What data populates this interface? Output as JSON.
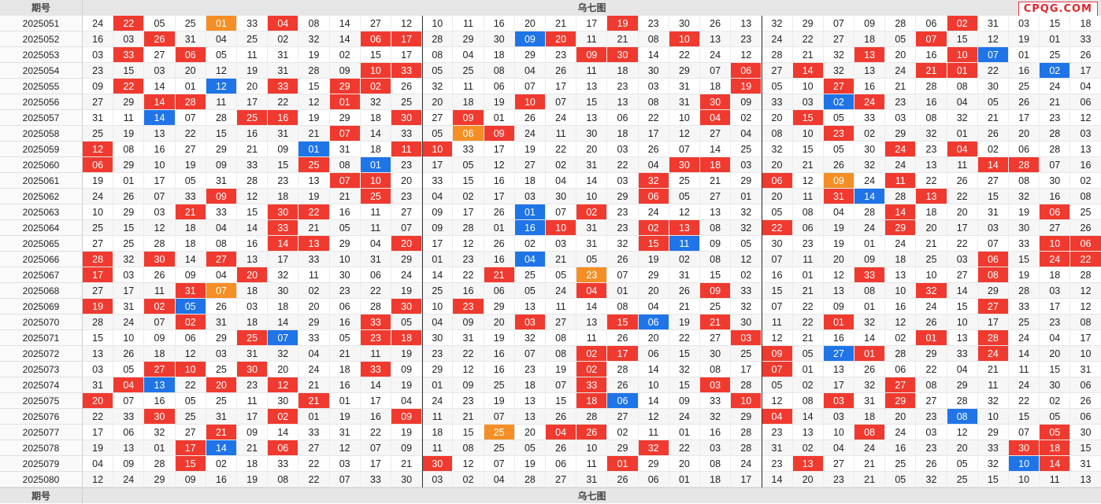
{
  "header": {
    "period_label": "期号",
    "chart_label": "乌七图",
    "logo": "CPQG.COM"
  },
  "footer": {
    "period_label": "期号",
    "chart_label": "乌七图"
  },
  "colors": {
    "red": "#f03a2f",
    "blue": "#1f74e8",
    "orange": "#f58f25"
  },
  "highlight_legend": "r = red, b = blue, o = orange, - = none",
  "rows": [
    {
      "period": "2025051",
      "nums": [
        "24",
        "22",
        "05",
        "25",
        "01",
        "33",
        "04",
        "08",
        "14",
        "27",
        "12",
        "10",
        "11",
        "16",
        "20",
        "21",
        "17",
        "19",
        "23",
        "30",
        "26",
        "13",
        "32",
        "29",
        "07",
        "09",
        "28",
        "06",
        "02",
        "31",
        "03",
        "15",
        "18"
      ],
      "hl": "-r--o-r----------r----------r-----"
    },
    {
      "period": "2025052",
      "nums": [
        "16",
        "03",
        "26",
        "31",
        "04",
        "25",
        "02",
        "32",
        "14",
        "06",
        "17",
        "28",
        "29",
        "30",
        "09",
        "20",
        "11",
        "21",
        "08",
        "10",
        "13",
        "23",
        "24",
        "22",
        "27",
        "18",
        "05",
        "07",
        "15",
        "12",
        "19",
        "01",
        "33"
      ],
      "hl": "--r------rr---br---r-------r------"
    },
    {
      "period": "2025053",
      "nums": [
        "03",
        "33",
        "27",
        "06",
        "05",
        "11",
        "31",
        "19",
        "02",
        "15",
        "17",
        "08",
        "04",
        "18",
        "29",
        "23",
        "09",
        "30",
        "14",
        "22",
        "24",
        "12",
        "28",
        "21",
        "32",
        "13",
        "20",
        "16",
        "10",
        "07",
        "01",
        "25",
        "26"
      ],
      "hl": "-r-r------------rr-------r--rb----"
    },
    {
      "period": "2025054",
      "nums": [
        "23",
        "15",
        "03",
        "20",
        "12",
        "19",
        "31",
        "28",
        "09",
        "10",
        "33",
        "05",
        "25",
        "08",
        "04",
        "26",
        "11",
        "18",
        "30",
        "29",
        "07",
        "06",
        "27",
        "14",
        "32",
        "13",
        "24",
        "21",
        "01",
        "22",
        "16",
        "02",
        "17"
      ],
      "hl": "---------rr----------r-r---rr--b--"
    },
    {
      "period": "2025055",
      "nums": [
        "09",
        "22",
        "14",
        "01",
        "12",
        "20",
        "33",
        "15",
        "29",
        "02",
        "26",
        "32",
        "11",
        "06",
        "07",
        "17",
        "13",
        "23",
        "03",
        "31",
        "18",
        "19",
        "05",
        "10",
        "27",
        "16",
        "21",
        "28",
        "08",
        "30",
        "25",
        "24",
        "04"
      ],
      "hl": "-r--b-r-rr-----------r--r--------"
    },
    {
      "period": "2025056",
      "nums": [
        "27",
        "29",
        "14",
        "28",
        "11",
        "17",
        "22",
        "12",
        "01",
        "32",
        "25",
        "20",
        "18",
        "19",
        "10",
        "07",
        "15",
        "13",
        "08",
        "31",
        "30",
        "09",
        "33",
        "03",
        "02",
        "24",
        "23",
        "16",
        "04",
        "05",
        "26",
        "21",
        "06"
      ],
      "hl": "--rr----r-----r-----r---br--------"
    },
    {
      "period": "2025057",
      "nums": [
        "31",
        "11",
        "14",
        "07",
        "28",
        "25",
        "16",
        "19",
        "29",
        "18",
        "30",
        "27",
        "09",
        "01",
        "26",
        "24",
        "13",
        "06",
        "22",
        "10",
        "04",
        "02",
        "20",
        "15",
        "05",
        "33",
        "03",
        "08",
        "32",
        "21",
        "17",
        "23",
        "12"
      ],
      "hl": "--b--rr---r-r-------r--r---------"
    },
    {
      "period": "2025058",
      "nums": [
        "25",
        "19",
        "13",
        "22",
        "15",
        "16",
        "31",
        "21",
        "07",
        "14",
        "33",
        "05",
        "06",
        "09",
        "24",
        "11",
        "30",
        "18",
        "17",
        "12",
        "27",
        "04",
        "08",
        "10",
        "23",
        "02",
        "29",
        "32",
        "01",
        "26",
        "20",
        "28",
        "03"
      ],
      "hl": "--------r---or----------r--------"
    },
    {
      "period": "2025059",
      "nums": [
        "12",
        "08",
        "16",
        "27",
        "29",
        "21",
        "09",
        "01",
        "31",
        "18",
        "11",
        "10",
        "33",
        "17",
        "19",
        "22",
        "20",
        "03",
        "26",
        "07",
        "14",
        "25",
        "32",
        "15",
        "05",
        "30",
        "24",
        "23",
        "04",
        "02",
        "06",
        "28",
        "13"
      ],
      "hl": "r------b--rr--------------r-r----r"
    },
    {
      "period": "2025060",
      "nums": [
        "06",
        "29",
        "10",
        "19",
        "09",
        "33",
        "15",
        "25",
        "08",
        "01",
        "23",
        "17",
        "05",
        "12",
        "27",
        "02",
        "31",
        "22",
        "04",
        "30",
        "18",
        "03",
        "20",
        "21",
        "26",
        "32",
        "24",
        "13",
        "11",
        "14",
        "28",
        "07",
        "16"
      ],
      "hl": "r------r-b---------rr--------rr---"
    },
    {
      "period": "2025061",
      "nums": [
        "19",
        "01",
        "17",
        "05",
        "31",
        "28",
        "23",
        "13",
        "07",
        "10",
        "20",
        "33",
        "15",
        "16",
        "18",
        "04",
        "14",
        "03",
        "32",
        "25",
        "21",
        "29",
        "06",
        "12",
        "09",
        "24",
        "11",
        "22",
        "26",
        "27",
        "08",
        "30",
        "02"
      ],
      "hl": "--------rr--------r---r-o-r-------"
    },
    {
      "period": "2025062",
      "nums": [
        "24",
        "26",
        "07",
        "33",
        "09",
        "12",
        "18",
        "19",
        "21",
        "25",
        "23",
        "04",
        "02",
        "17",
        "03",
        "30",
        "10",
        "29",
        "06",
        "05",
        "27",
        "01",
        "20",
        "11",
        "31",
        "14",
        "28",
        "13",
        "22",
        "15",
        "32",
        "16",
        "08"
      ],
      "hl": "----r----r--------r-----rb-r-----r"
    },
    {
      "period": "2025063",
      "nums": [
        "10",
        "29",
        "03",
        "21",
        "33",
        "15",
        "30",
        "22",
        "16",
        "11",
        "27",
        "09",
        "17",
        "26",
        "01",
        "07",
        "02",
        "23",
        "24",
        "12",
        "13",
        "32",
        "05",
        "08",
        "04",
        "28",
        "14",
        "18",
        "20",
        "31",
        "19",
        "06",
        "25"
      ],
      "hl": "---r--rr------b-r---------r----r--"
    },
    {
      "period": "2025064",
      "nums": [
        "25",
        "15",
        "12",
        "18",
        "04",
        "14",
        "33",
        "21",
        "05",
        "11",
        "07",
        "09",
        "28",
        "01",
        "16",
        "10",
        "31",
        "23",
        "02",
        "13",
        "08",
        "32",
        "22",
        "06",
        "19",
        "24",
        "29",
        "20",
        "17",
        "03",
        "30",
        "27",
        "26"
      ],
      "hl": "------r-------br--rr--r---r-------"
    },
    {
      "period": "2025065",
      "nums": [
        "27",
        "25",
        "28",
        "18",
        "08",
        "16",
        "14",
        "13",
        "29",
        "04",
        "20",
        "17",
        "12",
        "26",
        "02",
        "03",
        "31",
        "32",
        "15",
        "11",
        "09",
        "05",
        "30",
        "23",
        "19",
        "01",
        "24",
        "21",
        "22",
        "07",
        "33",
        "10",
        "06"
      ],
      "hl": "------rr--r-------rb-----------rr"
    },
    {
      "period": "2025066",
      "nums": [
        "28",
        "32",
        "30",
        "14",
        "27",
        "13",
        "17",
        "33",
        "10",
        "31",
        "29",
        "01",
        "23",
        "16",
        "04",
        "21",
        "05",
        "26",
        "19",
        "02",
        "08",
        "12",
        "07",
        "11",
        "20",
        "09",
        "18",
        "25",
        "03",
        "06",
        "15",
        "24",
        "22"
      ],
      "hl": "r-r-r---------b--------------r-rr"
    },
    {
      "period": "2025067",
      "nums": [
        "17",
        "03",
        "26",
        "09",
        "04",
        "20",
        "32",
        "11",
        "30",
        "06",
        "24",
        "14",
        "22",
        "21",
        "25",
        "05",
        "23",
        "07",
        "29",
        "31",
        "15",
        "02",
        "16",
        "01",
        "12",
        "33",
        "13",
        "10",
        "27",
        "08",
        "19",
        "18",
        "28"
      ],
      "hl": "r----r-------r--o--------r---r------"
    },
    {
      "period": "2025068",
      "nums": [
        "27",
        "17",
        "11",
        "31",
        "07",
        "18",
        "30",
        "02",
        "23",
        "22",
        "19",
        "25",
        "16",
        "06",
        "05",
        "24",
        "04",
        "01",
        "20",
        "26",
        "09",
        "33",
        "15",
        "21",
        "13",
        "08",
        "10",
        "32",
        "14",
        "29",
        "28",
        "03",
        "12"
      ],
      "hl": "---ro-----------r---r------r-------"
    },
    {
      "period": "2025069",
      "nums": [
        "19",
        "31",
        "02",
        "05",
        "26",
        "03",
        "18",
        "20",
        "06",
        "28",
        "30",
        "10",
        "23",
        "29",
        "13",
        "11",
        "14",
        "08",
        "04",
        "21",
        "25",
        "32",
        "07",
        "22",
        "09",
        "01",
        "16",
        "24",
        "15",
        "27",
        "33",
        "17",
        "12"
      ],
      "hl": "r-rb------r-r----------------r----"
    },
    {
      "period": "2025070",
      "nums": [
        "28",
        "24",
        "07",
        "02",
        "31",
        "18",
        "14",
        "29",
        "16",
        "33",
        "05",
        "04",
        "09",
        "20",
        "03",
        "27",
        "13",
        "15",
        "06",
        "19",
        "21",
        "30",
        "11",
        "22",
        "01",
        "32",
        "12",
        "26",
        "10",
        "17",
        "25",
        "23",
        "08"
      ],
      "hl": "---r-----r----r--rb-r---r---------"
    },
    {
      "period": "2025071",
      "nums": [
        "15",
        "10",
        "09",
        "06",
        "29",
        "25",
        "07",
        "33",
        "05",
        "23",
        "18",
        "30",
        "31",
        "19",
        "32",
        "08",
        "11",
        "26",
        "20",
        "22",
        "27",
        "03",
        "12",
        "21",
        "16",
        "14",
        "02",
        "01",
        "13",
        "28",
        "24",
        "04",
        "17"
      ],
      "hl": "-----rb--rr----------r-----r-r----"
    },
    {
      "period": "2025072",
      "nums": [
        "13",
        "26",
        "18",
        "12",
        "03",
        "31",
        "32",
        "04",
        "21",
        "11",
        "19",
        "23",
        "22",
        "16",
        "07",
        "08",
        "02",
        "17",
        "06",
        "15",
        "30",
        "25",
        "09",
        "05",
        "27",
        "01",
        "28",
        "29",
        "33",
        "24",
        "14",
        "20",
        "10"
      ],
      "hl": "----------------rr----r-br---r---r--"
    },
    {
      "period": "2025073",
      "nums": [
        "03",
        "05",
        "27",
        "10",
        "25",
        "30",
        "20",
        "24",
        "18",
        "33",
        "09",
        "29",
        "12",
        "16",
        "23",
        "19",
        "02",
        "28",
        "14",
        "32",
        "08",
        "17",
        "07",
        "01",
        "13",
        "26",
        "06",
        "22",
        "04",
        "21",
        "11",
        "15",
        "31"
      ],
      "hl": "--rr-r---r------r-----r-----------b--"
    },
    {
      "period": "2025074",
      "nums": [
        "31",
        "04",
        "13",
        "22",
        "20",
        "23",
        "12",
        "21",
        "16",
        "14",
        "19",
        "01",
        "09",
        "25",
        "18",
        "07",
        "33",
        "26",
        "10",
        "15",
        "03",
        "28",
        "05",
        "02",
        "17",
        "32",
        "27",
        "08",
        "29",
        "11",
        "24",
        "30",
        "06"
      ],
      "hl": "-rb-r-r---------r---r-----r--------"
    },
    {
      "period": "2025075",
      "nums": [
        "20",
        "07",
        "16",
        "05",
        "25",
        "11",
        "30",
        "21",
        "01",
        "17",
        "04",
        "24",
        "23",
        "19",
        "13",
        "15",
        "18",
        "06",
        "14",
        "09",
        "33",
        "10",
        "12",
        "08",
        "03",
        "31",
        "29",
        "27",
        "28",
        "32",
        "22",
        "02",
        "26"
      ],
      "hl": "r------r--------rb---r--r-r--------"
    },
    {
      "period": "2025076",
      "nums": [
        "22",
        "33",
        "30",
        "25",
        "31",
        "17",
        "02",
        "01",
        "19",
        "16",
        "09",
        "11",
        "21",
        "07",
        "13",
        "26",
        "28",
        "27",
        "12",
        "24",
        "32",
        "29",
        "04",
        "14",
        "03",
        "18",
        "20",
        "23",
        "08",
        "10",
        "15",
        "05",
        "06"
      ],
      "hl": "--r---r---r-----------r-----b----r"
    },
    {
      "period": "2025077",
      "nums": [
        "17",
        "06",
        "32",
        "27",
        "21",
        "09",
        "14",
        "33",
        "31",
        "22",
        "19",
        "18",
        "15",
        "25",
        "20",
        "04",
        "26",
        "02",
        "11",
        "01",
        "16",
        "28",
        "23",
        "13",
        "10",
        "08",
        "24",
        "03",
        "12",
        "29",
        "07",
        "05",
        "30"
      ],
      "hl": "----r--------o-rr--------r-----r--"
    },
    {
      "period": "2025078",
      "nums": [
        "19",
        "13",
        "01",
        "17",
        "14",
        "21",
        "06",
        "27",
        "12",
        "07",
        "09",
        "11",
        "08",
        "25",
        "05",
        "26",
        "10",
        "29",
        "32",
        "22",
        "03",
        "28",
        "31",
        "02",
        "04",
        "24",
        "16",
        "23",
        "20",
        "33",
        "30",
        "18",
        "15"
      ],
      "hl": "---rb-r-----------r-----------rr--r"
    },
    {
      "period": "2025079",
      "nums": [
        "04",
        "09",
        "28",
        "15",
        "02",
        "18",
        "33",
        "22",
        "03",
        "17",
        "21",
        "30",
        "12",
        "07",
        "19",
        "06",
        "11",
        "01",
        "29",
        "20",
        "08",
        "24",
        "23",
        "13",
        "27",
        "21",
        "25",
        "26",
        "05",
        "32",
        "10",
        "14",
        "31"
      ],
      "hl": "---r-------r-----r-----r------br-r"
    },
    {
      "period": "2025080",
      "nums": [
        "12",
        "24",
        "29",
        "09",
        "16",
        "19",
        "08",
        "22",
        "07",
        "33",
        "30",
        "03",
        "02",
        "04",
        "28",
        "27",
        "31",
        "26",
        "06",
        "01",
        "18",
        "17",
        "14",
        "20",
        "23",
        "21",
        "05",
        "32",
        "25",
        "15",
        "10",
        "11",
        "13"
      ],
      "hl": "------------------------------------"
    }
  ]
}
